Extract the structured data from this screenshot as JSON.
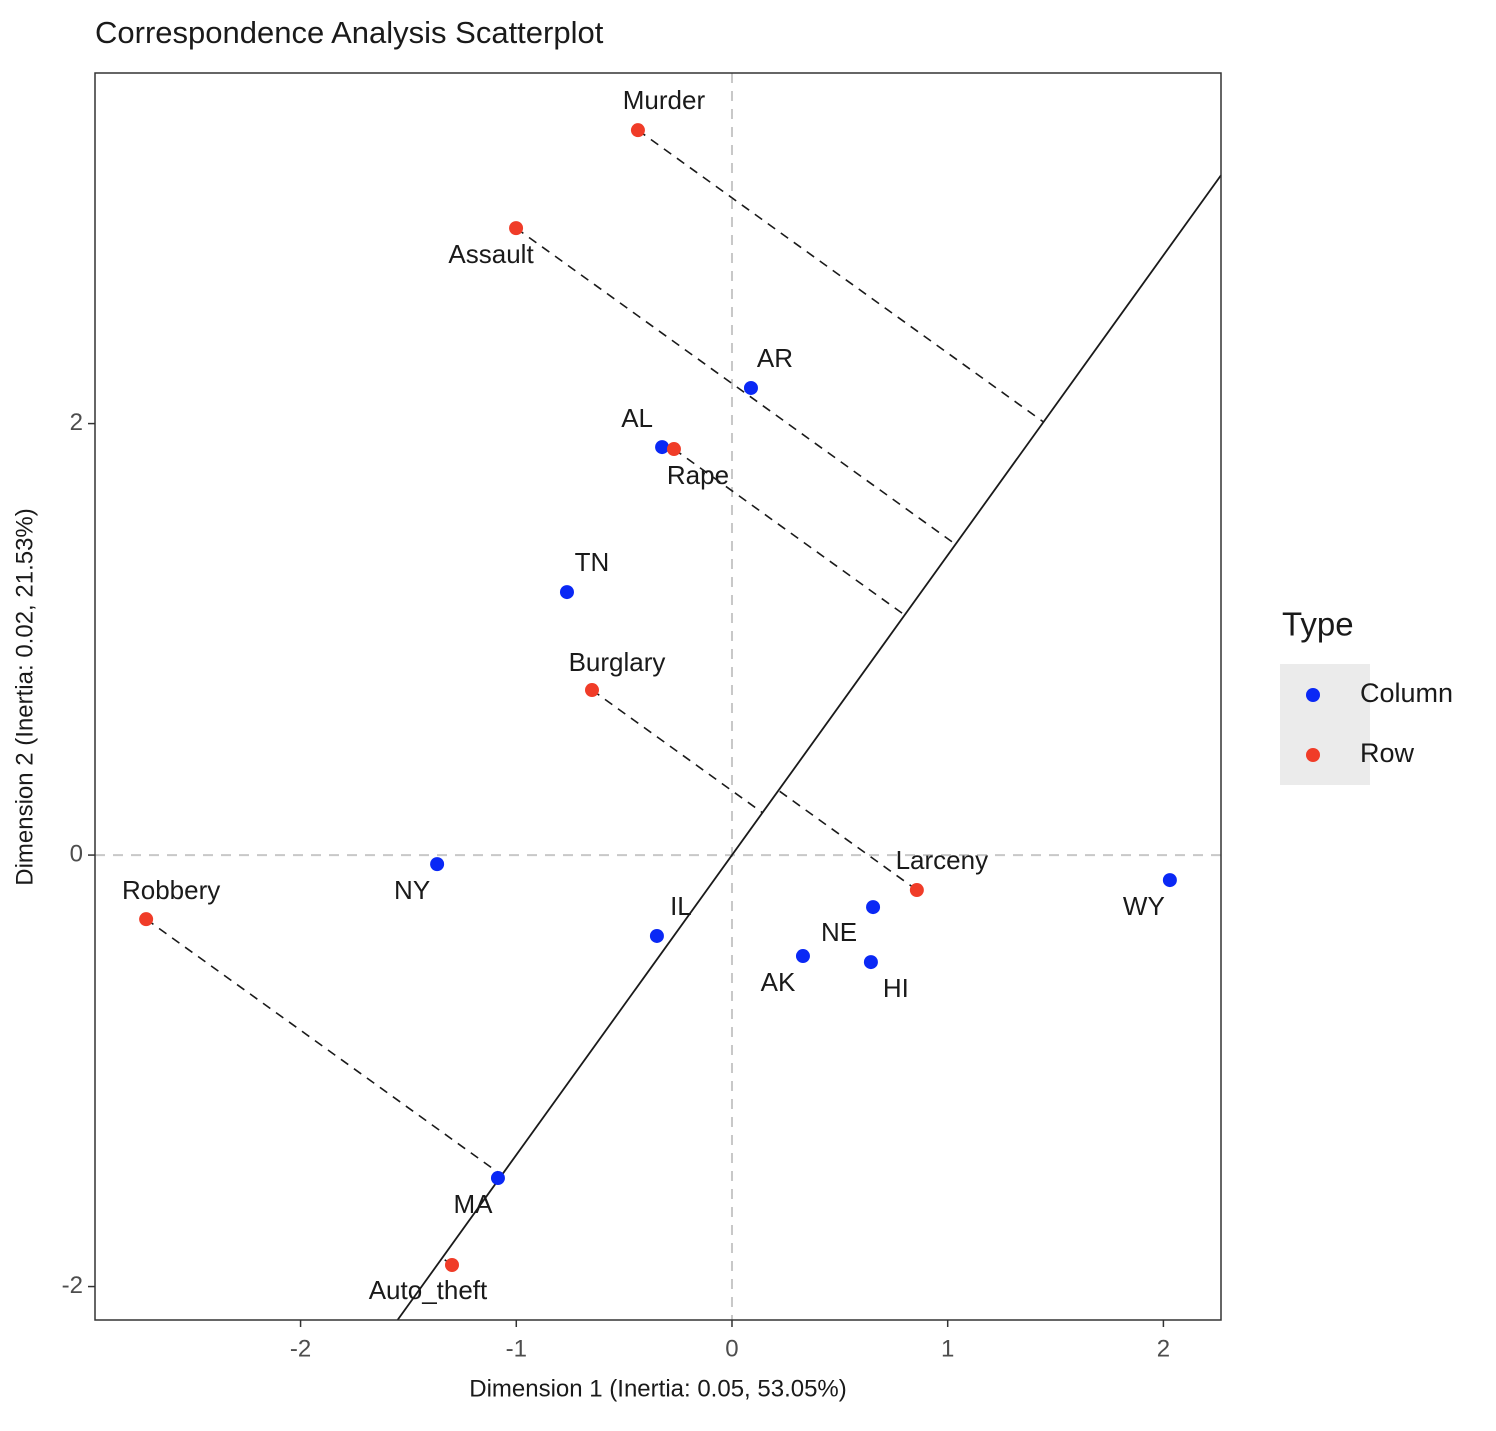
{
  "chart_data": {
    "type": "scatter",
    "title": "Correspondence Analysis Scatterplot",
    "x_label": "Dimension 1 (Inertia: 0.05, 53.05%)",
    "y_label": "Dimension 2 (Inertia: 0.02, 21.53%)",
    "legend_title": "Type",
    "legend_position": "right",
    "xlim": [
      -2.953,
      2.267
    ],
    "ylim": [
      -2.155,
      3.625
    ],
    "xticks": [
      -2,
      -1,
      0,
      1,
      2
    ],
    "yticks": [
      -2,
      0,
      2
    ],
    "zero_lines": true,
    "line_slope": 1.39,
    "series": [
      {
        "name": "Column",
        "color": "#0a28f5",
        "labels": [
          "AR",
          "AL",
          "TN",
          "NY",
          "IL",
          "AK",
          "NE",
          "HI",
          "WY",
          "MA"
        ],
        "x": [
          0.088,
          -0.324,
          -0.765,
          -1.367,
          -0.348,
          0.329,
          0.654,
          0.644,
          2.03,
          -1.085
        ],
        "values": [
          2.165,
          1.891,
          1.219,
          -0.042,
          -0.375,
          -0.468,
          -0.241,
          -0.496,
          -0.116,
          -1.497
        ],
        "projection": false
      },
      {
        "name": "Row",
        "color": "#f03c28",
        "labels": [
          "Murder",
          "Assault",
          "Rape",
          "Burglary",
          "Larceny",
          "Robbery",
          "Auto_theft"
        ],
        "x": [
          -0.436,
          -1.001,
          -0.269,
          -0.649,
          0.857,
          -2.716,
          -1.298
        ],
        "values": [
          3.36,
          2.906,
          1.882,
          0.765,
          -0.162,
          -0.297,
          -1.9
        ],
        "projection": true
      }
    ]
  }
}
